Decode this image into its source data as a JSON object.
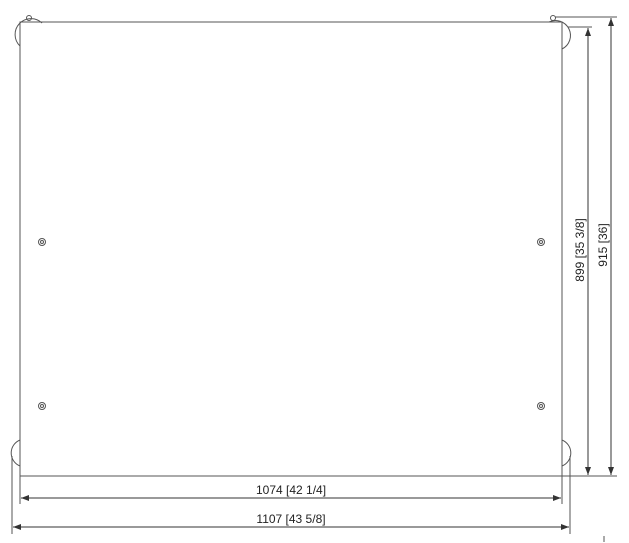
{
  "dimensions": {
    "inner_width": "1074 [42 1/4]",
    "outer_width": "1107 [43 5/8]",
    "inner_height": "899 [35 3/8]",
    "outer_height": "915 [36]"
  },
  "colors": {
    "line": "#555555",
    "text": "#222222",
    "background": "#ffffff"
  }
}
